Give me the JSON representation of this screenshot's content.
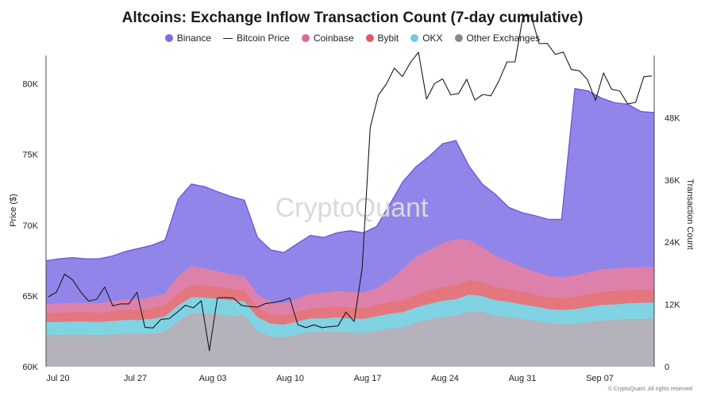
{
  "chart_data": {
    "type": "area",
    "title": "Altcoins: Exchange Inflow Transaction Count (7-day cumulative)",
    "ylabel": "Price ($)",
    "y2label": "Transaction Count",
    "watermark": "CryptoQuant",
    "credit": "© CryptoQuant. All rights reserved",
    "legend_position": "top",
    "x_ticks": [
      "Jul 20",
      "Jul 27",
      "Aug 03",
      "Aug 10",
      "Aug 17",
      "Aug 24",
      "Aug 31",
      "Sep 07"
    ],
    "y_ticks": [
      "60K",
      "65K",
      "70K",
      "75K",
      "80K"
    ],
    "y2_ticks": [
      "0",
      "12K",
      "24K",
      "36K",
      "48K"
    ],
    "ylim": [
      60000,
      82000
    ],
    "y2lim": [
      0,
      60000
    ],
    "grid": false,
    "series_stacked": [
      {
        "name": "Other Exchanges",
        "color": "#b4b2bb",
        "values": [
          6200,
          6100,
          6200,
          6200,
          6100,
          6200,
          6300,
          6300,
          6400,
          6800,
          8800,
          10400,
          10300,
          10100,
          9900,
          9800,
          6900,
          5800,
          5700,
          6200,
          6700,
          6700,
          6800,
          6600,
          6500,
          6900,
          7400,
          7600,
          8500,
          9100,
          9600,
          9800,
          10700,
          10500,
          9800,
          9600,
          9200,
          8800,
          8400,
          8200,
          8300,
          8600,
          8900,
          9000,
          9200,
          9200,
          9300
        ]
      },
      {
        "name": "OKX",
        "color": "#7fd3e3",
        "values": [
          2400,
          2500,
          2500,
          2500,
          2500,
          2600,
          2700,
          2700,
          2800,
          2900,
          3000,
          3000,
          3000,
          3000,
          2900,
          2800,
          2600,
          2500,
          2400,
          2500,
          2600,
          2600,
          2700,
          2700,
          2700,
          2800,
          2800,
          2900,
          2900,
          3000,
          3100,
          3200,
          3200,
          3100,
          3000,
          2900,
          2800,
          2800,
          2700,
          2700,
          2800,
          2900,
          3000,
          3000,
          3000,
          3100,
          3100
        ]
      },
      {
        "name": "Bybit",
        "color": "#e4777e",
        "values": [
          1700,
          1800,
          1800,
          1800,
          1800,
          1900,
          2000,
          2000,
          2100,
          2200,
          2400,
          2400,
          2300,
          2300,
          2200,
          2100,
          1900,
          1800,
          1800,
          1900,
          2000,
          2000,
          2100,
          2100,
          2100,
          2200,
          2300,
          2400,
          2500,
          2600,
          2700,
          2800,
          2800,
          2700,
          2600,
          2500,
          2400,
          2300,
          2300,
          2300,
          2400,
          2500,
          2600,
          2600,
          2600,
          2600,
          2600
        ]
      },
      {
        "name": "Coinbase",
        "color": "#de81aa",
        "values": [
          1700,
          1800,
          1800,
          1800,
          1800,
          1900,
          2000,
          2000,
          2100,
          2200,
          3300,
          3600,
          3300,
          3000,
          2800,
          2700,
          2500,
          2400,
          2300,
          2500,
          2800,
          2900,
          3000,
          3000,
          3000,
          3200,
          4200,
          6000,
          7300,
          7800,
          8400,
          8800,
          7700,
          6700,
          5900,
          5300,
          4800,
          4400,
          4100,
          4000,
          4100,
          4200,
          4300,
          4300,
          4300,
          4300,
          4200
        ]
      },
      {
        "name": "Binance",
        "color": "#9285ea",
        "values": [
          8400,
          8600,
          8700,
          8500,
          8600,
          8700,
          9200,
          9800,
          10000,
          10300,
          14800,
          15800,
          15800,
          15300,
          15000,
          14700,
          11000,
          10000,
          9800,
          10600,
          11200,
          10700,
          11200,
          11800,
          11500,
          11900,
          14600,
          16800,
          17400,
          18100,
          19200,
          19000,
          14200,
          12200,
          11900,
          10400,
          10500,
          10800,
          10900,
          11200,
          36000,
          35000,
          33000,
          32000,
          31500,
          30000,
          29800
        ]
      }
    ],
    "price_series": {
      "name": "Bitcoin Price",
      "color": "#1a1a1a",
      "values": [
        64940,
        65270,
        66540,
        66140,
        65290,
        64630,
        64770,
        65630,
        64300,
        64440,
        64440,
        65260,
        62770,
        62740,
        63350,
        63390,
        63840,
        64340,
        64160,
        64650,
        61130,
        64860,
        64890,
        64850,
        64330,
        64250,
        64210,
        64470,
        64530,
        64650,
        64850,
        62970,
        62760,
        62960,
        62760,
        62830,
        62880,
        63860,
        63190,
        66960,
        76910,
        79190,
        79980,
        81110,
        80510,
        81510,
        82230,
        78920,
        80020,
        80350,
        79220,
        79320,
        80330,
        78850,
        79250,
        79150,
        80220,
        81550,
        81550,
        84800,
        84820,
        82840,
        82860,
        82080,
        82240,
        81010,
        80920,
        80300,
        78820,
        80770,
        79620,
        79500,
        78580,
        78690,
        80500,
        80560
      ]
    }
  }
}
